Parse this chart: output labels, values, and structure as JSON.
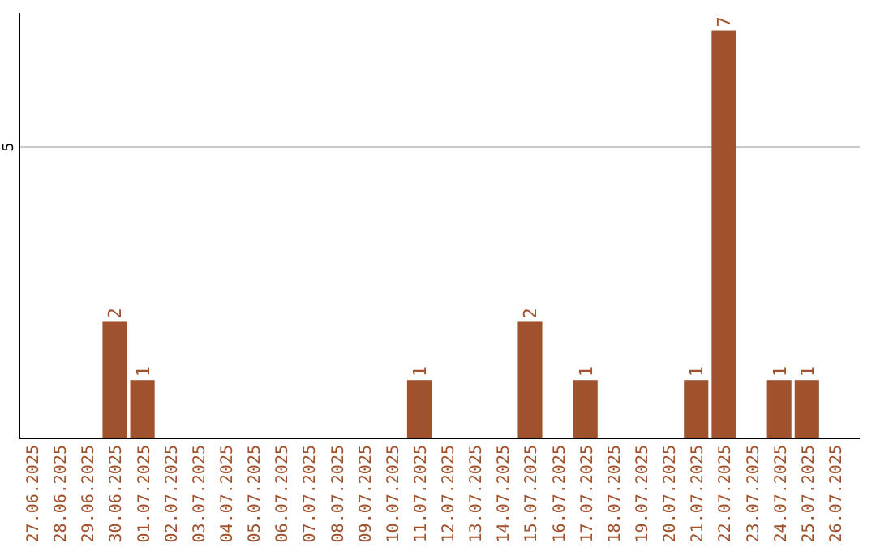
{
  "chart_data": {
    "type": "bar",
    "categories": [
      "27.06.2025",
      "28.06.2025",
      "29.06.2025",
      "30.06.2025",
      "01.07.2025",
      "02.07.2025",
      "03.07.2025",
      "04.07.2025",
      "05.07.2025",
      "06.07.2025",
      "07.07.2025",
      "08.07.2025",
      "09.07.2025",
      "10.07.2025",
      "11.07.2025",
      "12.07.2025",
      "13.07.2025",
      "14.07.2025",
      "15.07.2025",
      "16.07.2025",
      "17.07.2025",
      "18.07.2025",
      "19.07.2025",
      "20.07.2025",
      "21.07.2025",
      "22.07.2025",
      "23.07.2025",
      "24.07.2025",
      "25.07.2025",
      "26.07.2025"
    ],
    "values": [
      0,
      0,
      0,
      2,
      1,
      0,
      0,
      0,
      0,
      0,
      0,
      0,
      0,
      0,
      1,
      0,
      0,
      0,
      2,
      0,
      1,
      0,
      0,
      0,
      1,
      7,
      0,
      1,
      1,
      0
    ],
    "color": "#a0522d",
    "value_labels": [
      null,
      null,
      null,
      "2",
      "1",
      null,
      null,
      null,
      null,
      null,
      null,
      null,
      null,
      null,
      "1",
      null,
      null,
      null,
      "2",
      null,
      "1",
      null,
      null,
      null,
      "1",
      "7",
      null,
      "1",
      "1",
      null
    ],
    "ylim": [
      0,
      7.3
    ],
    "yticks": [
      5
    ],
    "grid": "y"
  }
}
